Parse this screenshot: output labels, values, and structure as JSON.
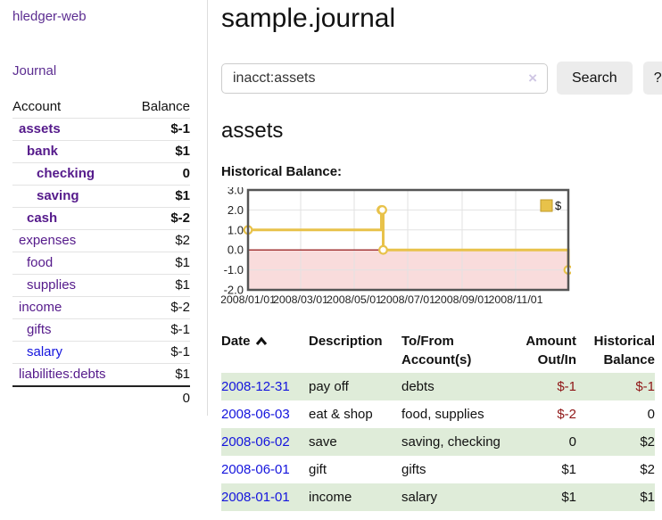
{
  "colors": {
    "link_purple": "#551a8b",
    "link_blue": "#1414dd",
    "negative": "#8f1616",
    "negative_dim": "#c47f7f",
    "row_stripe_green": "#dfecd9",
    "chart_line": "#e8c24a",
    "chart_negative_fill": "#f9dcdc",
    "chart_zero_line": "#8b0000",
    "button_bg": "#ececec"
  },
  "sidebar": {
    "brand": "hledger-web",
    "nav": [
      {
        "label": "Journal"
      }
    ],
    "accounts": {
      "headers": {
        "account": "Account",
        "balance": "Balance"
      },
      "rows": [
        {
          "name": "assets",
          "balance": "$-1",
          "depth": 1,
          "matched": true,
          "neg": "strong",
          "link": "purple"
        },
        {
          "name": "bank",
          "balance": "$1",
          "depth": 2,
          "matched": true,
          "neg": null,
          "link": "purple"
        },
        {
          "name": "checking",
          "balance": "0",
          "depth": 3,
          "matched": true,
          "neg": null,
          "link": "purple"
        },
        {
          "name": "saving",
          "balance": "$1",
          "depth": 3,
          "matched": true,
          "neg": null,
          "link": "purple"
        },
        {
          "name": "cash",
          "balance": "$-2",
          "depth": 2,
          "matched": true,
          "neg": "strong",
          "link": "purple"
        },
        {
          "name": "expenses",
          "balance": "$2",
          "depth": 1,
          "matched": false,
          "neg": null,
          "link": "purple"
        },
        {
          "name": "food",
          "balance": "$1",
          "depth": 2,
          "matched": false,
          "neg": null,
          "link": "purple"
        },
        {
          "name": "supplies",
          "balance": "$1",
          "depth": 2,
          "matched": false,
          "neg": null,
          "link": "purple"
        },
        {
          "name": "income",
          "balance": "$-2",
          "depth": 1,
          "matched": false,
          "neg": "dim",
          "link": "purple"
        },
        {
          "name": "gifts",
          "balance": "$-1",
          "depth": 2,
          "matched": false,
          "neg": "dim",
          "link": "purple"
        },
        {
          "name": "salary",
          "balance": "$-1",
          "depth": 2,
          "matched": false,
          "neg": "dim",
          "link": "blue"
        },
        {
          "name": "liabilities:debts",
          "balance": "$1",
          "depth": 1,
          "matched": false,
          "neg": null,
          "link": "purple"
        }
      ],
      "total": "0"
    }
  },
  "main": {
    "title": "sample.journal",
    "search": {
      "value": "inacct:assets",
      "clear_label": "×",
      "search_button": "Search",
      "help_button": "?"
    },
    "account_heading": "assets",
    "section_heading": "Historical Balance:"
  },
  "chart_data": {
    "type": "line",
    "step": true,
    "title": "Historical Balance",
    "x_range": [
      "2008-01-01",
      "2008-12-31"
    ],
    "ylim": [
      -2,
      3
    ],
    "y_ticks": [
      {
        "value": 3,
        "label": "3.0"
      },
      {
        "value": 2,
        "label": "2.0"
      },
      {
        "value": 1,
        "label": "1.0"
      },
      {
        "value": 0,
        "label": "0.0"
      },
      {
        "value": -1,
        "label": "-1.0"
      },
      {
        "value": -2,
        "label": "-2.0"
      }
    ],
    "x_ticks": [
      {
        "date": "2008-01-01",
        "label": "2008/01/01"
      },
      {
        "date": "2008-03-01",
        "label": "2008/03/01"
      },
      {
        "date": "2008-05-01",
        "label": "2008/05/01"
      },
      {
        "date": "2008-07-01",
        "label": "2008/07/01"
      },
      {
        "date": "2008-09-01",
        "label": "2008/09/01"
      },
      {
        "date": "2008-11-01",
        "label": "2008/11/01"
      }
    ],
    "series": [
      {
        "name": "$",
        "color": "#e8c24a",
        "points": [
          {
            "date": "2008-01-01",
            "value": 1
          },
          {
            "date": "2008-06-01",
            "value": 2
          },
          {
            "date": "2008-06-02",
            "value": 2
          },
          {
            "date": "2008-06-03",
            "value": 0
          },
          {
            "date": "2008-12-31",
            "value": -1
          }
        ]
      }
    ],
    "legend": [
      {
        "label": "$",
        "color": "#e8c24a"
      }
    ],
    "legend_position": "top-right",
    "grid": true,
    "negative_region_fill": "#f9dcdc",
    "zero_line_color": "#8b0000"
  },
  "register": {
    "headers": {
      "date": "Date",
      "description": "Description",
      "accounts": "To/From Account(s)",
      "amount": "Amount Out/In",
      "balance": "Historical Balance"
    },
    "sort": {
      "column": "date",
      "direction": "asc"
    },
    "rows": [
      {
        "date": "2008-12-31",
        "description": "pay off",
        "accounts": "debts",
        "amount": "$-1",
        "balance": "$-1",
        "amount_negative": true,
        "balance_negative": true
      },
      {
        "date": "2008-06-03",
        "description": "eat & shop",
        "accounts": "food, supplies",
        "amount": "$-2",
        "balance": "0",
        "amount_negative": true,
        "balance_negative": false
      },
      {
        "date": "2008-06-02",
        "description": "save",
        "accounts": "saving, checking",
        "amount": "0",
        "balance": "$2",
        "amount_negative": false,
        "balance_negative": false
      },
      {
        "date": "2008-06-01",
        "description": "gift",
        "accounts": "gifts",
        "amount": "$1",
        "balance": "$2",
        "amount_negative": false,
        "balance_negative": false
      },
      {
        "date": "2008-01-01",
        "description": "income",
        "accounts": "salary",
        "amount": "$1",
        "balance": "$1",
        "amount_negative": false,
        "balance_negative": false
      }
    ]
  }
}
